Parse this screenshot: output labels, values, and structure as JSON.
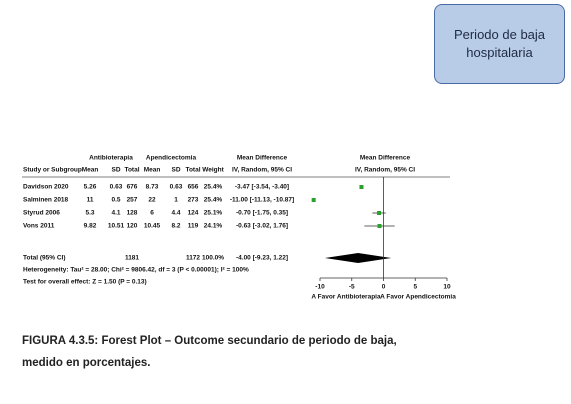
{
  "badge": "Periodo de baja hospitalaria",
  "forest": {
    "group_headers": [
      "Antibioterapia",
      "Apendicectomia",
      "Mean Difference",
      "Mean Difference"
    ],
    "columns": [
      "Study or Subgroup",
      "Mean",
      "SD",
      "Total",
      "Mean",
      "SD",
      "Total",
      "Weight",
      "IV, Random, 95% CI",
      "IV, Random, 95% CI"
    ],
    "studies": [
      {
        "name": "Davidson 2020",
        "cells": [
          "5.26",
          "0.63",
          "676",
          "8.73",
          "0.63",
          "656",
          "25.4%"
        ],
        "md": -3.47,
        "ci": [
          -3.54,
          -3.4
        ],
        "md_label": "-3.47 [-3.54, -3.40]"
      },
      {
        "name": "Salminen 2018",
        "cells": [
          "11",
          "0.5",
          "257",
          "22",
          "1",
          "273",
          "25.4%"
        ],
        "md": -11.0,
        "ci": [
          -11.13,
          -10.87
        ],
        "md_label": "-11.00 [-11.13, -10.87]"
      },
      {
        "name": "Styrud 2006",
        "cells": [
          "5.3",
          "4.1",
          "128",
          "6",
          "4.4",
          "124",
          "25.1%"
        ],
        "md": -0.7,
        "ci": [
          -1.75,
          0.35
        ],
        "md_label": "-0.70 [-1.75, 0.35]"
      },
      {
        "name": "Vons 2011",
        "cells": [
          "9.82",
          "10.51",
          "120",
          "10.45",
          "8.2",
          "119",
          "24.1%"
        ],
        "md": -0.63,
        "ci": [
          -3.02,
          1.76
        ],
        "md_label": "-0.63 [-3.02, 1.76]"
      }
    ],
    "total": {
      "name": "Total (95% CI)",
      "total1": "1181",
      "total2": "1172",
      "weight": "100.0%",
      "md": -4.0,
      "ci": [
        -9.23,
        1.22
      ],
      "md_label": "-4.00 [-9.23, 1.22]"
    },
    "heterogeneity": "Heterogeneity: Tau² = 28.00; Chi² = 9806.42, df = 3 (P < 0.00001); I² = 100%",
    "overall_effect": "Test for overall effect: Z = 1.50 (P = 0.13)",
    "xlim": [
      -10,
      10
    ],
    "xticks": [
      -10,
      -5,
      0,
      5,
      10
    ],
    "favours": [
      "A Favor Antibioterapia",
      "A Favor Apendicectomia"
    ]
  },
  "caption": "FIGURA 4.3.5: Forest Plot – Outcome secundario de periodo de baja, medido en porcentajes."
}
